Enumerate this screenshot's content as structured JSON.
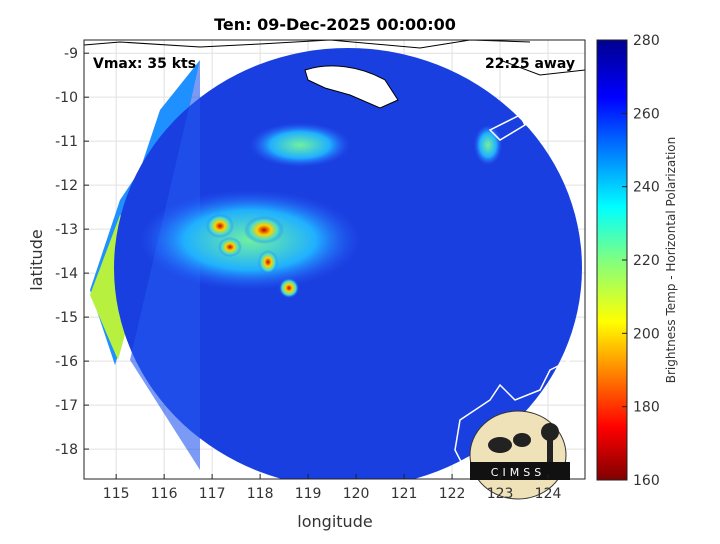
{
  "title": "Ten: 09-Dec-2025 00:00:00",
  "annotations": {
    "vmax": "Vmax: 35 kts",
    "time_away": "22:25 away"
  },
  "axes": {
    "xlabel": "longitude",
    "ylabel": "latitude",
    "xlim": [
      114.33,
      124.77
    ],
    "ylim": [
      -18.68,
      -8.7
    ],
    "xticks": [
      "115",
      "116",
      "117",
      "118",
      "119",
      "120",
      "121",
      "122",
      "123",
      "124"
    ],
    "yticks": [
      "-9",
      "-10",
      "-11",
      "-12",
      "-13",
      "-14",
      "-15",
      "-16",
      "-17",
      "-18"
    ],
    "grid": true
  },
  "colorbar": {
    "label": "Brightness Temp - Horizontal Polarization",
    "range": [
      160,
      280
    ],
    "ticks": [
      "280",
      "260",
      "240",
      "220",
      "200",
      "180",
      "160"
    ],
    "colormap": "jet"
  },
  "logo": {
    "text": "CIMSS"
  },
  "colors": {
    "coastline": "#ffffff",
    "land_outline": "#000000",
    "background_swath": "#1a3fe0"
  }
}
